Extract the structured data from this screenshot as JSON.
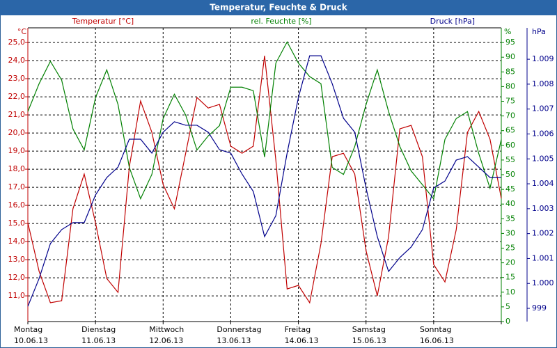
{
  "chart_data": {
    "type": "line",
    "title": "Temperatur, Feuchte & Druck",
    "y_title": "Temperatur [°C]",
    "y_unit": "°C",
    "y2_title": "rel. Feuchte [%]",
    "y2_unit": "%",
    "y3_title": "Druck [hPa]",
    "y3_unit": "hPa",
    "grid": true,
    "xlim": [
      0,
      168
    ],
    "xticks": [
      0,
      24,
      48,
      72,
      96,
      120,
      144,
      168
    ],
    "day_labels": [
      {
        "day": "Montag",
        "date": "10.06.13"
      },
      {
        "day": "Dienstag",
        "date": "11.06.13"
      },
      {
        "day": "Mittwoch",
        "date": "12.06.13"
      },
      {
        "day": "Donnerstag",
        "date": "13.06.13"
      },
      {
        "day": "Freitag",
        "date": "14.06.13"
      },
      {
        "day": "Samstag",
        "date": "15.06.13"
      },
      {
        "day": "Sonntag",
        "date": "16.06.13"
      }
    ],
    "ylim": [
      9.58,
      25.81
    ],
    "yticks": [
      {
        "value": 11,
        "label": "11,0"
      },
      {
        "value": 12,
        "label": "12,0"
      },
      {
        "value": 13,
        "label": "13,0"
      },
      {
        "value": 14,
        "label": "14,0"
      },
      {
        "value": 15,
        "label": "15,0"
      },
      {
        "value": 16,
        "label": "16,0"
      },
      {
        "value": 17,
        "label": "17,0"
      },
      {
        "value": 18,
        "label": "18,0"
      },
      {
        "value": 19,
        "label": "19,0"
      },
      {
        "value": 20,
        "label": "20,0"
      },
      {
        "value": 21,
        "label": "21,0"
      },
      {
        "value": 22,
        "label": "22,0"
      },
      {
        "value": 23,
        "label": "23,0"
      },
      {
        "value": 24,
        "label": "24,0"
      },
      {
        "value": 25,
        "label": "25,0"
      }
    ],
    "y2lim": [
      0,
      100
    ],
    "y2ticks": [
      0,
      5,
      10,
      15,
      20,
      25,
      30,
      35,
      40,
      45,
      50,
      55,
      60,
      65,
      70,
      75,
      80,
      85,
      90,
      95
    ],
    "y3lim": [
      998.47,
      1010.26
    ],
    "y3ticks": [
      999,
      {
        "value": 1000,
        "label": "1.000"
      },
      {
        "value": 1001,
        "label": "1.001"
      },
      {
        "value": 1002,
        "label": "1.002"
      },
      {
        "value": 1003,
        "label": "1.003"
      },
      {
        "value": 1004,
        "label": "1.004"
      },
      {
        "value": 1005,
        "label": "1.005"
      },
      {
        "value": 1006,
        "label": "1.006"
      },
      {
        "value": 1007,
        "label": "1.007"
      },
      {
        "value": 1008,
        "label": "1.008"
      },
      {
        "value": 1009,
        "label": "1.009"
      }
    ],
    "x": [
      0,
      4,
      8,
      12,
      16,
      20,
      24,
      28,
      32,
      36,
      40,
      44,
      48,
      52,
      56,
      60,
      64,
      68,
      72,
      76,
      80,
      84,
      88,
      92,
      96,
      100,
      104,
      108,
      112,
      116,
      120,
      124,
      128,
      132,
      136,
      140,
      144,
      148,
      152,
      156,
      160,
      164,
      168
    ],
    "series": [
      {
        "name": "Temperatur",
        "axis": "y",
        "color": "#c00000",
        "values": [
          15.04,
          12.35,
          10.62,
          10.73,
          15.81,
          17.73,
          15.04,
          11.96,
          11.19,
          18.12,
          21.77,
          20.04,
          17.15,
          15.81,
          18.88,
          21.96,
          21.38,
          21.58,
          19.27,
          18.88,
          19.27,
          24.27,
          18.5,
          11.38,
          11.58,
          10.62,
          13.88,
          18.69,
          18.88,
          17.73,
          13.5,
          11.0,
          14.27,
          20.23,
          20.42,
          18.69,
          12.73,
          11.77,
          14.65,
          20.04,
          21.19,
          19.65,
          16.38
        ]
      },
      {
        "name": "rel. Feuchte",
        "axis": "y2",
        "color": "#008000",
        "values": [
          71.5,
          81,
          88.6,
          82.2,
          65.6,
          58.4,
          76.2,
          85.7,
          73.9,
          52.5,
          41.8,
          50.1,
          69.1,
          77.4,
          70.3,
          58.4,
          63.2,
          66.7,
          79.8,
          79.8,
          78.6,
          56,
          88,
          95.2,
          88,
          83.4,
          81,
          52.5,
          50.1,
          59.6,
          73.9,
          85.7,
          71.5,
          59.6,
          51.3,
          46.6,
          41.8,
          62,
          69.1,
          71.5,
          57.2,
          45.4,
          62
        ]
      },
      {
        "name": "Druck",
        "axis": "y3",
        "color": "#00008b",
        "values": [
          999.08,
          1000.2,
          1001.6,
          1002.16,
          1002.44,
          1002.44,
          1003.55,
          1004.25,
          1004.67,
          1005.79,
          1005.79,
          1005.23,
          1006.07,
          1006.49,
          1006.35,
          1006.35,
          1006.07,
          1005.37,
          1005.23,
          1004.39,
          1003.69,
          1001.88,
          1002.72,
          1005.23,
          1007.46,
          1009.14,
          1009.14,
          1008.02,
          1006.63,
          1006.07,
          1003.83,
          1001.88,
          1000.48,
          1001.04,
          1001.46,
          1002.16,
          1003.83,
          1004.11,
          1004.95,
          1005.09,
          1004.67,
          1004.25,
          1004.25
        ]
      }
    ]
  }
}
